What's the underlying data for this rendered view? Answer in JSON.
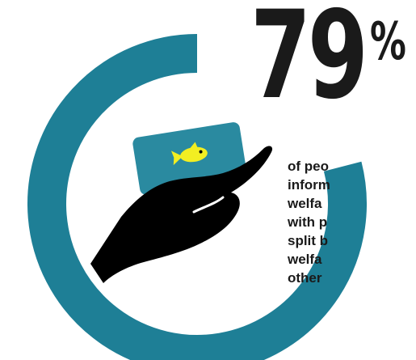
{
  "stat": {
    "value": "79",
    "unit": "%",
    "fraction": 0.79
  },
  "caption": {
    "lines": [
      "of peo",
      "inform",
      "welfa",
      "with p",
      "split b",
      "welfa",
      "other"
    ]
  },
  "icons": {
    "illustration": "hand-holding-card-icon",
    "fish": "fish-icon"
  },
  "colors": {
    "ring": "#1e7f96",
    "card": "#2a8aa0",
    "hand": "#000000",
    "fish": "#f2ee22",
    "text": "#1a1a1a"
  }
}
